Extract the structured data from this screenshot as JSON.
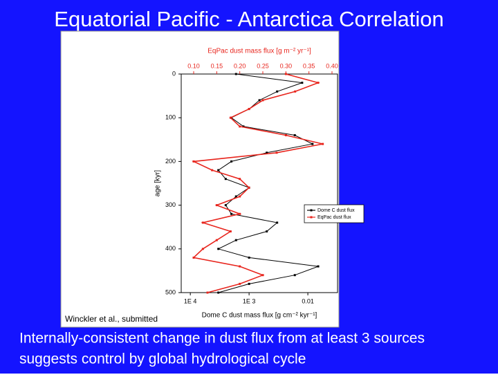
{
  "slide_title": "Equatorial Pacific - Antarctica Correlation",
  "citation": "Winckler et al., submitted",
  "body_lines": [
    "Internally-consistent change in dust flux from at least 3 sources",
    "suggests control by global hydrological cycle"
  ],
  "chart_data": {
    "type": "line",
    "x2_label": "EqPac dust mass flux [g m⁻² yr⁻¹]",
    "x_label": "Dome C dust mass flux [g cm⁻² kyr⁻¹]",
    "y_label": "age [kyr]",
    "y": [
      0,
      20,
      40,
      60,
      80,
      100,
      120,
      140,
      160,
      180,
      200,
      220,
      240,
      260,
      280,
      300,
      320,
      340,
      360,
      380,
      400,
      420,
      440,
      460,
      480,
      500
    ],
    "ylim": [
      0,
      500
    ],
    "yticks": [
      0,
      100,
      200,
      300,
      400,
      500
    ],
    "y_reversed": true,
    "xlim": [
      7e-05,
      0.032
    ],
    "xscale": "log",
    "xticks": [
      {
        "value": 0.0001,
        "label": "1E 4"
      },
      {
        "value": 0.001,
        "label": "1E 3"
      },
      0.01
    ],
    "x2lim": [
      0.073,
      0.412
    ],
    "x2ticks": [
      {
        "value": 0.1,
        "label": "0.10"
      },
      0.15,
      {
        "value": 0.2,
        "label": "0.20"
      },
      0.25,
      {
        "value": 0.3,
        "label": "0.30"
      },
      0.35,
      {
        "value": 0.4,
        "label": "0.40"
      }
    ],
    "legend": "right",
    "series": [
      {
        "name": "Dome C dust flux",
        "color": "#000000",
        "axis": "x",
        "values": [
          0.0006,
          0.008,
          0.003,
          0.0015,
          0.001,
          0.0005,
          0.0008,
          0.006,
          0.012,
          0.002,
          0.0005,
          0.0003,
          0.0004,
          0.001,
          0.0006,
          0.0004,
          0.0005,
          0.003,
          0.002,
          0.0006,
          0.0003,
          0.001,
          0.015,
          0.006,
          0.001,
          0.0003
        ]
      },
      {
        "name": "EqPac dust flux",
        "color": "#e8251d",
        "axis": "x2",
        "values": [
          0.3,
          0.37,
          0.32,
          0.25,
          0.22,
          0.18,
          0.2,
          0.3,
          0.38,
          0.28,
          0.1,
          0.14,
          0.2,
          0.22,
          0.2,
          0.15,
          0.2,
          0.12,
          0.18,
          0.15,
          0.12,
          0.1,
          0.2,
          0.25,
          0.2,
          0.13
        ]
      }
    ]
  }
}
